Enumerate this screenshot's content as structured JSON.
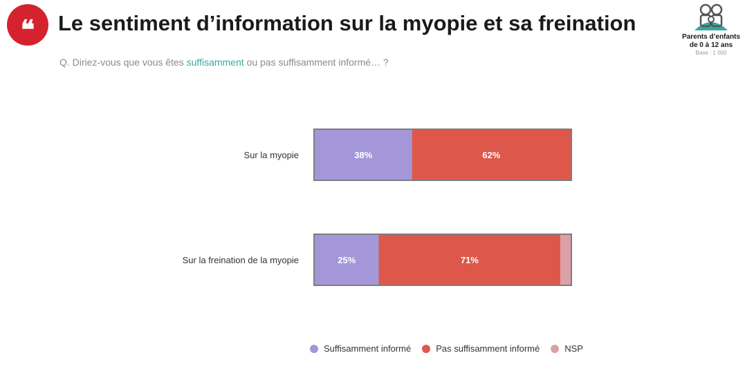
{
  "title": "Le sentiment d’information sur la myopie et sa freination",
  "question": {
    "prefix": "Q. Diriez-vous que vous êtes ",
    "highlight": "suffisamment",
    "suffix": " ou pas suffisamment informé… ?"
  },
  "audience": {
    "line1": "Parents d’enfants",
    "line2": "de 0 à 12 ans",
    "base": "Base : 1 000"
  },
  "colors": {
    "logo": "#d4232f",
    "question_highlight": "#3aa6a0"
  },
  "chart_data": {
    "type": "bar",
    "orientation": "horizontal",
    "stacked": true,
    "categories": [
      "Sur la myopie",
      "Sur la freination de la myopie"
    ],
    "series": [
      {
        "name": "Suffisamment informé",
        "values": [
          38,
          25
        ],
        "labels": [
          "38%",
          "25%"
        ],
        "color": "#a397d9"
      },
      {
        "name": "Pas suffisamment informé",
        "values": [
          62,
          71
        ],
        "labels": [
          "62%",
          "71%"
        ],
        "color": "#dd584a"
      },
      {
        "name": "NSP",
        "values": [
          0,
          4
        ],
        "labels": [
          "",
          ""
        ],
        "color": "#dca0a8"
      }
    ],
    "xlim": [
      0,
      100
    ],
    "legend_position": "bottom",
    "grid": false
  }
}
